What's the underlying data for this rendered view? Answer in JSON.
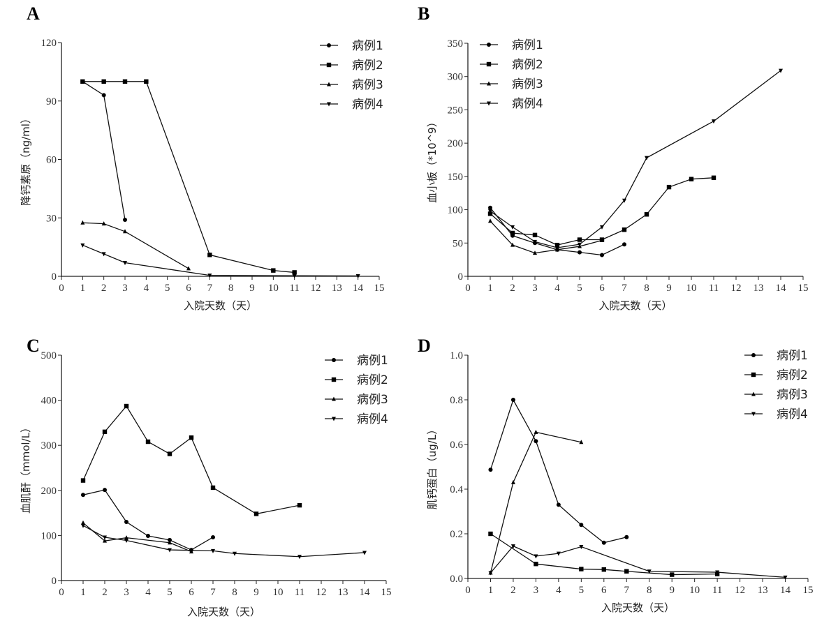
{
  "legend_labels": [
    "病例1",
    "病例2",
    "病例3",
    "病例4"
  ],
  "chart_data": [
    {
      "panel": "A",
      "type": "line",
      "title": "",
      "xlabel": "入院天数（天）",
      "ylabel": "降钙素原（ng/ml）",
      "xlim": [
        0,
        15
      ],
      "ylim": [
        0,
        120
      ],
      "xticks": [
        0,
        1,
        2,
        3,
        4,
        5,
        6,
        7,
        8,
        9,
        10,
        11,
        12,
        13,
        14,
        15
      ],
      "yticks": [
        0,
        30,
        60,
        90,
        120
      ],
      "legend_position": "top-right",
      "series": [
        {
          "name": "病例1",
          "marker": "circle",
          "x": [
            1,
            2,
            3
          ],
          "y": [
            100,
            93,
            29
          ]
        },
        {
          "name": "病例2",
          "marker": "square",
          "x": [
            1,
            2,
            3,
            4,
            7,
            10,
            11
          ],
          "y": [
            100,
            100,
            100,
            100,
            11,
            3,
            2
          ]
        },
        {
          "name": "病例3",
          "marker": "triangle-up",
          "x": [
            1,
            2,
            3,
            6
          ],
          "y": [
            27.5,
            27,
            23,
            4
          ]
        },
        {
          "name": "病例4",
          "marker": "triangle-down",
          "x": [
            1,
            2,
            3,
            7,
            11,
            14
          ],
          "y": [
            16,
            11.5,
            7,
            0.5,
            0.3,
            0.2
          ]
        }
      ]
    },
    {
      "panel": "B",
      "type": "line",
      "title": "",
      "xlabel": "入院天数（天）",
      "ylabel": "血小板（*10^9）",
      "xlim": [
        0,
        15
      ],
      "ylim": [
        0,
        350
      ],
      "xticks": [
        0,
        1,
        2,
        3,
        4,
        5,
        6,
        7,
        8,
        9,
        10,
        11,
        12,
        13,
        14,
        15
      ],
      "yticks": [
        0,
        50,
        100,
        150,
        200,
        250,
        300,
        350
      ],
      "legend_position": "top-left",
      "series": [
        {
          "name": "病例1",
          "marker": "circle",
          "x": [
            1,
            2,
            3,
            4,
            5,
            6,
            7
          ],
          "y": [
            103,
            61,
            50,
            40,
            36,
            32,
            48
          ]
        },
        {
          "name": "病例2",
          "marker": "square",
          "x": [
            1,
            2,
            3,
            4,
            5,
            6,
            7,
            8,
            9,
            10,
            11
          ],
          "y": [
            94,
            65,
            62,
            47,
            55,
            55,
            70,
            93,
            134,
            146,
            148
          ]
        },
        {
          "name": "病例3",
          "marker": "triangle-up",
          "x": [
            1,
            2,
            3,
            4,
            5,
            6
          ],
          "y": [
            83,
            47,
            35,
            40,
            45,
            54
          ]
        },
        {
          "name": "病例4",
          "marker": "triangle-down",
          "x": [
            1,
            2,
            3,
            4,
            5,
            6,
            7,
            8,
            11,
            14
          ],
          "y": [
            98,
            74,
            52,
            43,
            48,
            74,
            114,
            178,
            233,
            309
          ]
        }
      ]
    },
    {
      "panel": "C",
      "type": "line",
      "title": "",
      "xlabel": "入院天数（天）",
      "ylabel": "血肌酐（mmol/L）",
      "xlim": [
        0,
        15
      ],
      "ylim": [
        0,
        500
      ],
      "xticks": [
        0,
        1,
        2,
        3,
        4,
        5,
        6,
        7,
        8,
        9,
        10,
        11,
        12,
        13,
        14,
        15
      ],
      "yticks": [
        0,
        100,
        200,
        300,
        400,
        500
      ],
      "legend_position": "top-right",
      "series": [
        {
          "name": "病例1",
          "marker": "circle",
          "x": [
            1,
            2,
            3,
            4,
            5,
            6,
            7
          ],
          "y": [
            190,
            201,
            130,
            99,
            90,
            68,
            96
          ]
        },
        {
          "name": "病例2",
          "marker": "square",
          "x": [
            1,
            2,
            3,
            4,
            5,
            6,
            7,
            9,
            11
          ],
          "y": [
            222,
            330,
            387,
            308,
            281,
            317,
            206,
            148,
            167
          ]
        },
        {
          "name": "病例3",
          "marker": "triangle-up",
          "x": [
            1,
            2,
            3,
            5,
            6
          ],
          "y": [
            128,
            88,
            95,
            84,
            64
          ]
        },
        {
          "name": "病例4",
          "marker": "triangle-down",
          "x": [
            1,
            2,
            3,
            5,
            6,
            7,
            8,
            11,
            14
          ],
          "y": [
            122,
            96,
            89,
            68,
            67,
            66,
            60,
            53,
            62
          ]
        }
      ]
    },
    {
      "panel": "D",
      "type": "line",
      "title": "",
      "xlabel": "入院天数（天）",
      "ylabel": "肌钙蛋白（ug/L）",
      "xlim": [
        0,
        15
      ],
      "ylim": [
        0,
        1.0
      ],
      "xticks": [
        0,
        1,
        2,
        3,
        4,
        5,
        6,
        7,
        8,
        9,
        10,
        11,
        12,
        13,
        14,
        15
      ],
      "yticks": [
        "0.0",
        "0.2",
        "0.4",
        "0.6",
        "0.8",
        "1.0"
      ],
      "legend_position": "top-right",
      "series": [
        {
          "name": "病例1",
          "marker": "circle",
          "x": [
            1,
            2,
            3,
            4,
            5,
            6,
            7
          ],
          "y": [
            0.487,
            0.8,
            0.615,
            0.33,
            0.24,
            0.16,
            0.185
          ]
        },
        {
          "name": "病例2",
          "marker": "square",
          "x": [
            1,
            3,
            5,
            6,
            7,
            9,
            11
          ],
          "y": [
            0.2,
            0.065,
            0.042,
            0.04,
            0.032,
            0.017,
            0.02
          ]
        },
        {
          "name": "病例3",
          "marker": "triangle-up",
          "x": [
            1,
            2,
            3,
            5
          ],
          "y": [
            0.025,
            0.43,
            0.655,
            0.61
          ]
        },
        {
          "name": "病例4",
          "marker": "triangle-down",
          "x": [
            1,
            2,
            3,
            4,
            5,
            8,
            11,
            14
          ],
          "y": [
            0.025,
            0.145,
            0.1,
            0.112,
            0.142,
            0.032,
            0.028,
            0.005
          ]
        }
      ]
    }
  ]
}
